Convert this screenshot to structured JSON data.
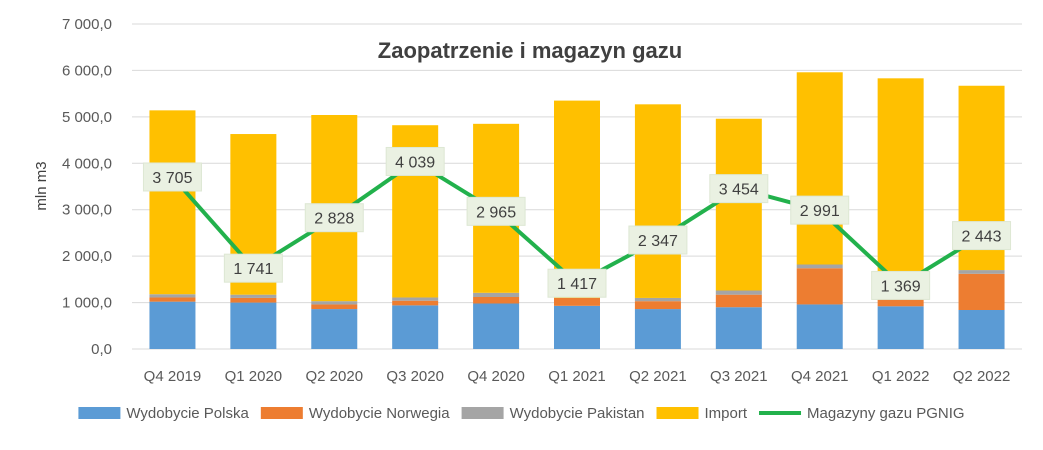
{
  "chart_data": {
    "type": "bar",
    "title": "Zaopatrzenie i magazyn gazu",
    "xlabel": "",
    "ylabel": "mln m3",
    "ylim": [
      0,
      7000
    ],
    "yticks": [
      "0,0",
      "1 000,0",
      "2 000,0",
      "3 000,0",
      "4 000,0",
      "5 000,0",
      "6 000,0",
      "7 000,0"
    ],
    "grid": true,
    "stacked": true,
    "legend_position": "bottom",
    "categories": [
      "Q4 2019",
      "Q1 2020",
      "Q2 2020",
      "Q3 2020",
      "Q4 2020",
      "Q1 2021",
      "Q2 2021",
      "Q3 2021",
      "Q4 2021",
      "Q1 2022",
      "Q2 2022"
    ],
    "series": [
      {
        "name": "Wydobycie Polska",
        "type": "bar",
        "color": "#5B9BD5",
        "values": [
          1020,
          1000,
          860,
          940,
          980,
          930,
          860,
          900,
          960,
          920,
          840
        ]
      },
      {
        "name": "Wydobycie Norwegia",
        "type": "bar",
        "color": "#ED7D31",
        "values": [
          90,
          100,
          100,
          100,
          140,
          170,
          170,
          270,
          780,
          180,
          780
        ]
      },
      {
        "name": "Wydobycie Pakistan",
        "type": "bar",
        "color": "#A5A5A5",
        "values": [
          70,
          70,
          70,
          70,
          90,
          0,
          70,
          90,
          80,
          70,
          80
        ]
      },
      {
        "name": "Import",
        "type": "bar",
        "color": "#FFC000",
        "values": [
          3960,
          3460,
          4010,
          3710,
          3640,
          4250,
          4170,
          3700,
          4140,
          4660,
          3970
        ]
      },
      {
        "name": "Magazyny gazu PGNIG",
        "type": "line",
        "color": "#22B14C",
        "values": [
          3705,
          1741,
          2828,
          4039,
          2965,
          1417,
          2347,
          3454,
          2991,
          1369,
          2443
        ],
        "labels": [
          "3 705",
          "1 741",
          "2 828",
          "4 039",
          "2 965",
          "1 417",
          "2 347",
          "3 454",
          "2 991",
          "1 369",
          "2 443"
        ]
      }
    ]
  }
}
